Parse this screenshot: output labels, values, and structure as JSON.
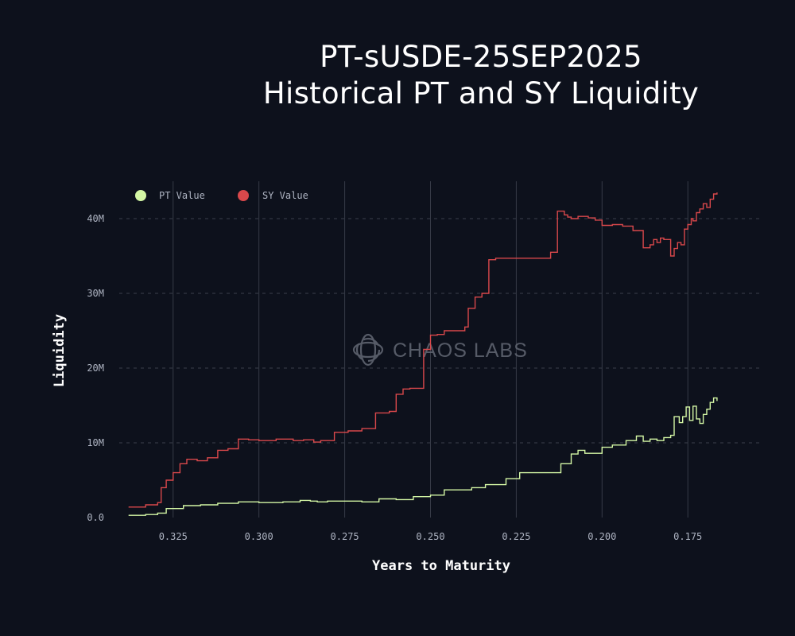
{
  "title_line1": "PT-sUSDE-25SEP2025",
  "title_line2": "Historical PT and SY Liquidity",
  "watermark": "CHAOS LABS",
  "colors": {
    "background": "#0d111c",
    "pt": "#d4f7a5",
    "sy": "#d9484b",
    "grid_dotted": "#3a3f4b",
    "grid_solid": "#363b47"
  },
  "chart_data": {
    "type": "line",
    "xlabel": "Years to Maturity",
    "ylabel": "Liquidity",
    "x_reversed": true,
    "xlim": [
      0.3407,
      0.1542
    ],
    "ylim": [
      0,
      45000000
    ],
    "x_ticks": [
      0.325,
      0.3,
      0.275,
      0.25,
      0.225,
      0.2,
      0.175
    ],
    "x_tick_labels": [
      "0.325",
      "0.300",
      "0.275",
      "0.250",
      "0.225",
      "0.200",
      "0.175"
    ],
    "y_ticks": [
      0,
      10000000,
      20000000,
      30000000,
      40000000
    ],
    "y_tick_labels": [
      "0.0",
      "10M",
      "20M",
      "30M",
      "40M"
    ],
    "grid": true,
    "legend_position": "top-left",
    "series": [
      {
        "name": "PT Value",
        "color": "#d4f7a5",
        "x": [
          0.338,
          0.333,
          0.3295,
          0.327,
          0.322,
          0.317,
          0.312,
          0.306,
          0.3,
          0.293,
          0.288,
          0.285,
          0.283,
          0.28,
          0.27,
          0.265,
          0.26,
          0.255,
          0.25,
          0.246,
          0.238,
          0.234,
          0.228,
          0.224,
          0.214,
          0.212,
          0.209,
          0.207,
          0.205,
          0.2,
          0.197,
          0.193,
          0.19,
          0.188,
          0.186,
          0.184,
          0.182,
          0.18,
          0.179,
          0.1775,
          0.1765,
          0.1755,
          0.1745,
          0.1735,
          0.1725,
          0.1715,
          0.1705,
          0.1695,
          0.1685,
          0.1675,
          0.1665
        ],
        "y": [
          300000,
          400000,
          600000,
          1200000,
          1600000,
          1700000,
          1900000,
          2100000,
          2000000,
          2100000,
          2300000,
          2200000,
          2100000,
          2200000,
          2100000,
          2500000,
          2400000,
          2800000,
          3000000,
          3700000,
          4000000,
          4400000,
          5200000,
          6000000,
          6000000,
          7200000,
          8500000,
          9000000,
          8600000,
          9400000,
          9700000,
          10300000,
          10900000,
          10200000,
          10500000,
          10300000,
          10700000,
          11000000,
          13500000,
          12700000,
          13500000,
          14800000,
          13000000,
          14900000,
          13200000,
          12600000,
          13800000,
          14500000,
          15400000,
          16000000,
          15600000
        ]
      },
      {
        "name": "SY Value",
        "color": "#d9484b",
        "x": [
          0.338,
          0.333,
          0.3295,
          0.3285,
          0.327,
          0.325,
          0.323,
          0.321,
          0.318,
          0.315,
          0.312,
          0.309,
          0.306,
          0.303,
          0.3,
          0.295,
          0.29,
          0.287,
          0.284,
          0.282,
          0.278,
          0.274,
          0.27,
          0.266,
          0.262,
          0.26,
          0.258,
          0.256,
          0.252,
          0.25,
          0.248,
          0.246,
          0.24,
          0.239,
          0.237,
          0.235,
          0.233,
          0.231,
          0.228,
          0.218,
          0.215,
          0.213,
          0.211,
          0.21,
          0.209,
          0.207,
          0.204,
          0.202,
          0.2,
          0.197,
          0.194,
          0.191,
          0.188,
          0.186,
          0.185,
          0.184,
          0.183,
          0.182,
          0.18,
          0.179,
          0.178,
          0.177,
          0.176,
          0.175,
          0.174,
          0.1735,
          0.1725,
          0.1715,
          0.1705,
          0.1695,
          0.1685,
          0.1675,
          0.1665
        ],
        "y": [
          1400000,
          1700000,
          2000000,
          4000000,
          5000000,
          6000000,
          7200000,
          7800000,
          7600000,
          8000000,
          9000000,
          9200000,
          10500000,
          10400000,
          10300000,
          10500000,
          10300000,
          10400000,
          10100000,
          10300000,
          11400000,
          11600000,
          11900000,
          14000000,
          14200000,
          16500000,
          17200000,
          17300000,
          22500000,
          24400000,
          24500000,
          25000000,
          25500000,
          28000000,
          29500000,
          30000000,
          34500000,
          34700000,
          34700000,
          34700000,
          35500000,
          41000000,
          40500000,
          40200000,
          40000000,
          40300000,
          40100000,
          39800000,
          39100000,
          39200000,
          39000000,
          38400000,
          36100000,
          36500000,
          37200000,
          36800000,
          37400000,
          37200000,
          35000000,
          36000000,
          36800000,
          36500000,
          38600000,
          39200000,
          40000000,
          39700000,
          40800000,
          41300000,
          42000000,
          41500000,
          42600000,
          43300000,
          43500000
        ]
      }
    ]
  }
}
